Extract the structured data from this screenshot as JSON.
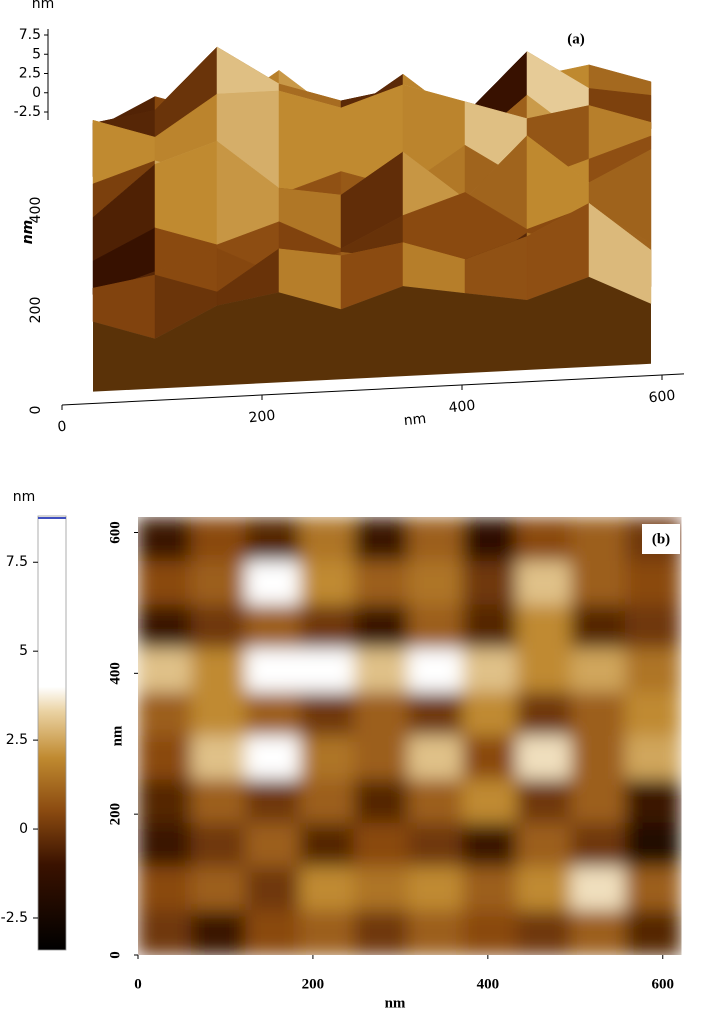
{
  "chart_data": [
    {
      "type": "surface",
      "label": "(a)",
      "xlabel": "nm",
      "ylabel": "nm",
      "zlabel": "nm",
      "xlim": [
        0,
        622
      ],
      "ylim": [
        0,
        622
      ],
      "zlim": [
        -3.5,
        8.8
      ],
      "xticks": [
        0,
        200,
        400,
        600
      ],
      "yticks": [
        0,
        200,
        400
      ],
      "zticks": [
        -2.5,
        0,
        2.5,
        5,
        7.5
      ],
      "x": [
        31,
        93,
        155,
        217,
        279,
        341,
        403,
        465,
        527,
        589
      ],
      "y": [
        589,
        527,
        465,
        403,
        341,
        279,
        217,
        155,
        93,
        31
      ],
      "z": [
        [
          -1,
          0.5,
          -0.5,
          1.5,
          -1,
          1,
          -1.5,
          0.5,
          1,
          0
        ],
        [
          0.5,
          1,
          4,
          2,
          1,
          1.5,
          0,
          3,
          1,
          0.5
        ],
        [
          -1,
          0,
          1,
          0,
          -1,
          1,
          -0.5,
          2,
          -0.5,
          0
        ],
        [
          3,
          2,
          4,
          4,
          3,
          4,
          3,
          2,
          2.5,
          1.5
        ],
        [
          1,
          2,
          1,
          0,
          1,
          0,
          2,
          0,
          1,
          2
        ],
        [
          0.5,
          3,
          4,
          1.5,
          1,
          3,
          0.5,
          3.5,
          1,
          2.5
        ],
        [
          -0.5,
          1,
          0,
          1,
          -0.5,
          1,
          2,
          0,
          1,
          -1
        ],
        [
          -1,
          0,
          1,
          -0.5,
          0.5,
          0,
          -1,
          1,
          0,
          -2
        ],
        [
          0.5,
          1,
          0,
          2,
          1.5,
          2,
          1,
          2,
          3.5,
          1
        ],
        [
          0,
          -1,
          0.5,
          1,
          0,
          1,
          0.5,
          0,
          1,
          -0.5
        ]
      ]
    },
    {
      "type": "heatmap",
      "label": "(b)",
      "xlabel": "nm",
      "ylabel": "nm",
      "xlim": [
        0,
        622
      ],
      "ylim": [
        0,
        622
      ],
      "xticks": [
        0,
        200,
        400,
        600
      ],
      "yticks": [
        0,
        200,
        400,
        600
      ],
      "colorbar": {
        "label": "nm",
        "lim": [
          -3.4,
          8.8
        ],
        "ticks": [
          -2.5,
          0,
          2.5,
          5,
          7.5
        ]
      },
      "colormap": [
        {
          "value": -3.4,
          "color": "#000000"
        },
        {
          "value": -1,
          "color": "#3a1200"
        },
        {
          "value": 0.5,
          "color": "#8a4a10"
        },
        {
          "value": 2,
          "color": "#c08a30"
        },
        {
          "value": 3.3,
          "color": "#ead2a2"
        },
        {
          "value": 4,
          "color": "#ffffff"
        }
      ],
      "x": [
        31,
        93,
        155,
        217,
        279,
        341,
        403,
        465,
        527,
        589
      ],
      "y": [
        589,
        527,
        465,
        403,
        341,
        279,
        217,
        155,
        93,
        31
      ],
      "z": [
        [
          -1,
          0.5,
          -0.5,
          1.5,
          -1,
          1,
          -1.5,
          0.5,
          1,
          0
        ],
        [
          0.5,
          1,
          4,
          2,
          1,
          1.5,
          0,
          3,
          1,
          0.5
        ],
        [
          -1,
          0,
          1,
          0,
          -1,
          1,
          -0.5,
          2,
          -0.5,
          0
        ],
        [
          3,
          2,
          4,
          4,
          3,
          4,
          3,
          2,
          2.5,
          1.5
        ],
        [
          1,
          2,
          1,
          0,
          1,
          0,
          2,
          0,
          1,
          2
        ],
        [
          0.5,
          3,
          4,
          1.5,
          1,
          3,
          0.5,
          3.5,
          1,
          2.5
        ],
        [
          -0.5,
          1,
          0,
          1,
          -0.5,
          1,
          2,
          0,
          1,
          -1
        ],
        [
          -1,
          0,
          1,
          -0.5,
          0.5,
          0,
          -1,
          1,
          0,
          -2
        ],
        [
          0.5,
          1,
          0,
          2,
          1.5,
          2,
          1,
          2,
          3.5,
          1
        ],
        [
          0,
          -1,
          0.5,
          1,
          0,
          1,
          0.5,
          0,
          1,
          -0.5
        ]
      ]
    }
  ]
}
